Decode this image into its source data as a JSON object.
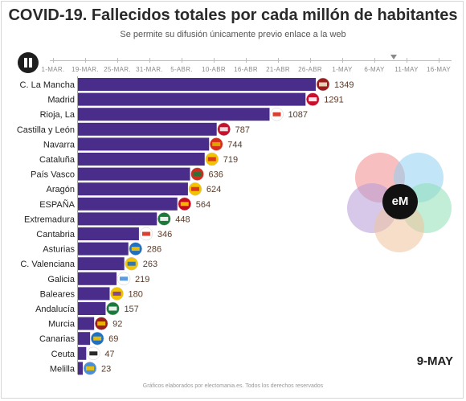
{
  "header": {
    "title": "COVID-19. Fallecidos totales por cada millón de habitantes",
    "subtitle": "Se permite su difusión únicamente previo enlace a la web"
  },
  "timeline": {
    "ticks": [
      "1-MAR.",
      "19-MAR.",
      "25-MAR.",
      "31-MAR.",
      "5-ABR.",
      "10-ABR",
      "16-ABR",
      "21-ABR",
      "26-ABR",
      "1-MAY",
      "6-MAY",
      "11-MAY",
      "16-MAY"
    ],
    "current_index": 10.6
  },
  "colors": {
    "bar": "#4a2d8a",
    "value_text": "#5a3b2a",
    "label_text": "#222222"
  },
  "chart_data": {
    "type": "bar",
    "orientation": "horizontal",
    "title": "COVID-19. Fallecidos totales por cada millón de habitantes",
    "categories": [
      "C. La Mancha",
      "Madrid",
      "Rioja, La",
      "Castilla y León",
      "Navarra",
      "Cataluña",
      "País Vasco",
      "Aragón",
      "ESPAÑA",
      "Extremadura",
      "Cantabria",
      "Asturias",
      "C. Valenciana",
      "Galicia",
      "Baleares",
      "Andalucía",
      "Murcia",
      "Canarias",
      "Ceuta",
      "Melilla"
    ],
    "values": [
      1349,
      1291,
      1087,
      787,
      744,
      719,
      636,
      624,
      564,
      448,
      346,
      286,
      263,
      219,
      180,
      157,
      92,
      69,
      47,
      23
    ],
    "flags": [
      "clm-flag",
      "madrid-flag",
      "rioja-flag",
      "castilla-leon-flag",
      "navarra-flag",
      "cataluna-flag",
      "pais-vasco-flag",
      "aragon-flag",
      "espana-flag",
      "extremadura-flag",
      "cantabria-flag",
      "asturias-flag",
      "valenciana-flag",
      "galicia-flag",
      "baleares-flag",
      "andalucia-flag",
      "murcia-flag",
      "canarias-flag",
      "ceuta-flag",
      "melilla-flag"
    ],
    "xlim": [
      0,
      1349
    ]
  },
  "logo": {
    "text": "eM"
  },
  "date_label": "9-MAY",
  "footer": "Gráficos elaborados por electomania.es. Todos los derechos reservados"
}
